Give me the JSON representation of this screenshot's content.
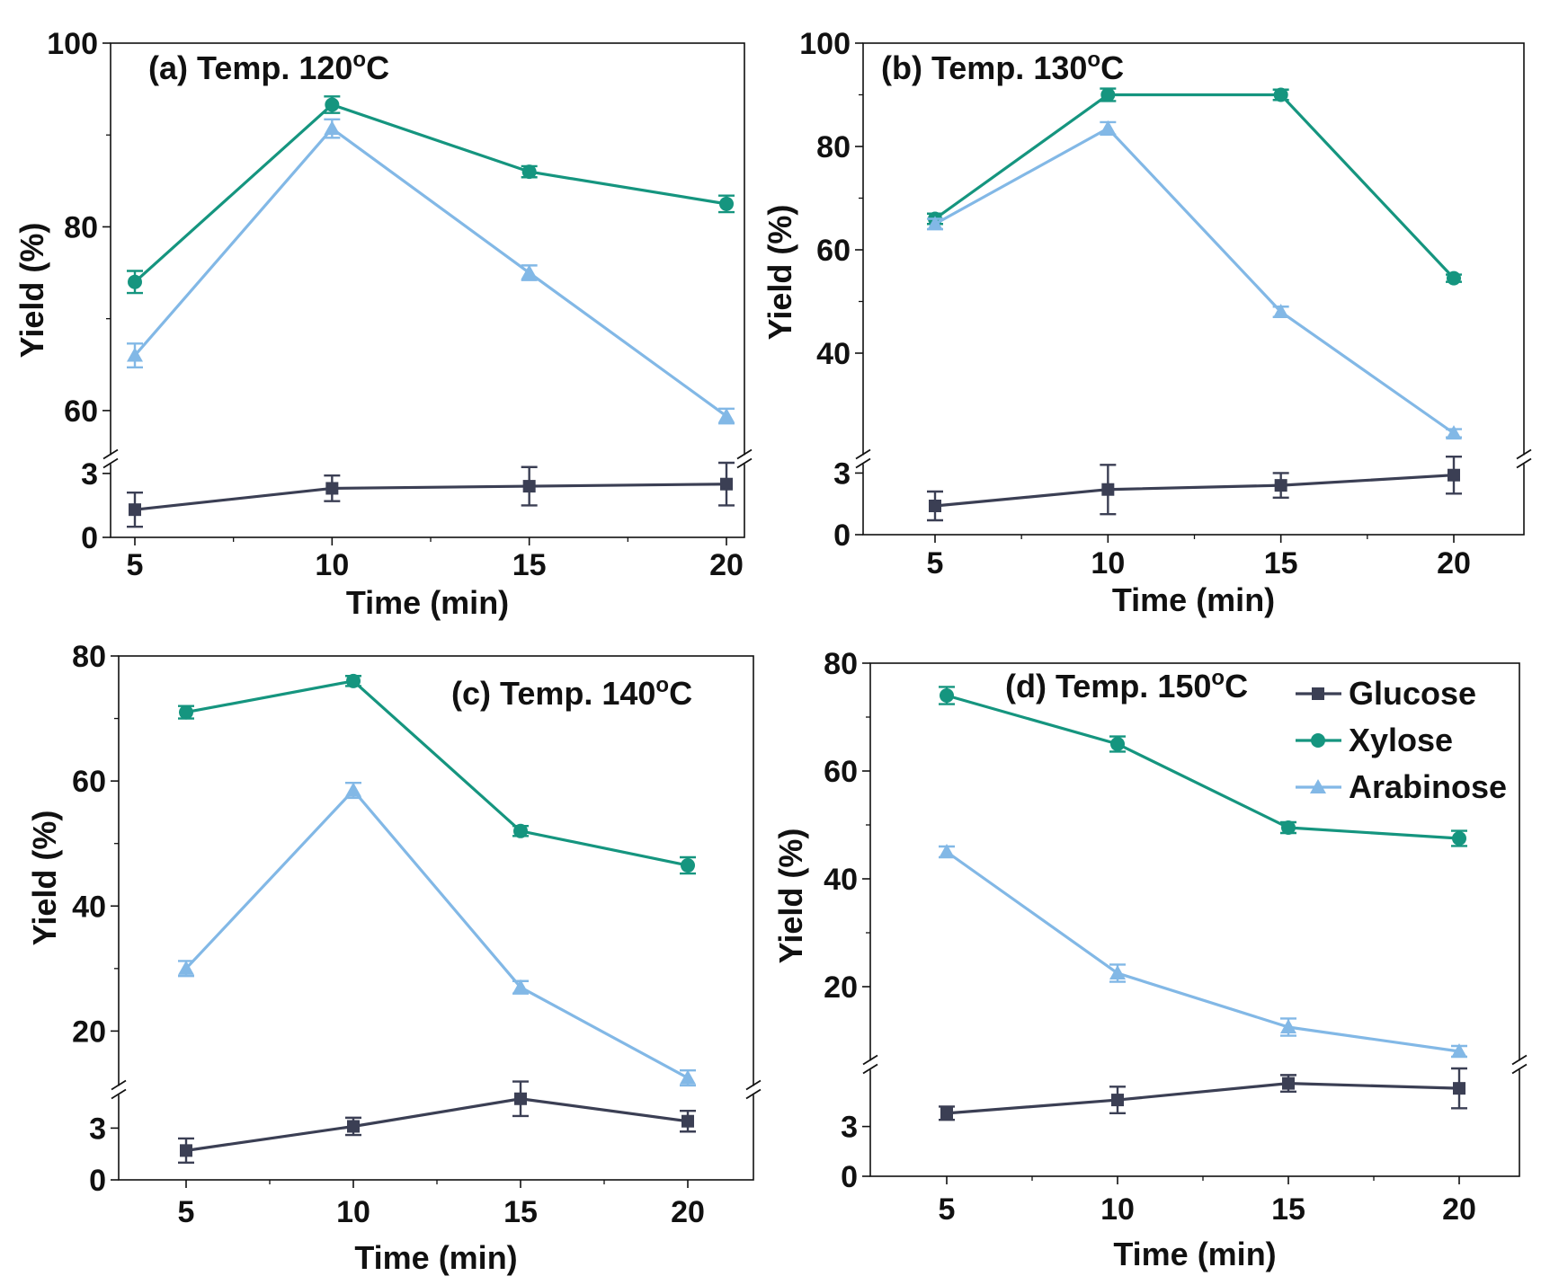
{
  "colors": {
    "glucose": "#3b3f54",
    "xylose": "#15957f",
    "arabinose": "#82b8e6",
    "axis": "#111111"
  },
  "legend": {
    "items": [
      {
        "key": "glucose",
        "label": "Glucose",
        "marker": "square"
      },
      {
        "key": "xylose",
        "label": "Xylose",
        "marker": "circle"
      },
      {
        "key": "arabinose",
        "label": "Arabinose",
        "marker": "triangle"
      }
    ]
  },
  "chart_data": [
    {
      "type": "line",
      "panel": "a",
      "title_prefix": "(a) Temp. 120",
      "title_sup": "o",
      "title_suffix": "C",
      "xlabel": "Time (min)",
      "ylabel": "Yield (%)",
      "x": [
        5,
        10,
        15,
        20
      ],
      "x_ticks": [
        "5",
        "10",
        "15",
        "20"
      ],
      "ylim_upper": [
        55,
        100
      ],
      "ylim_lower": [
        0,
        3.5
      ],
      "y_ticks_upper": [
        "60",
        "80",
        "100"
      ],
      "y_ticks_lower": [
        "0",
        "3"
      ],
      "series": [
        {
          "name": "Glucose",
          "segment": "lower",
          "values": [
            1.3,
            2.3,
            2.4,
            2.5
          ],
          "errors": [
            0.8,
            0.6,
            0.9,
            1.0
          ]
        },
        {
          "name": "Xylose",
          "segment": "upper",
          "values": [
            74.0,
            93.3,
            86.0,
            82.5
          ],
          "errors": [
            1.2,
            0.9,
            0.6,
            0.9
          ]
        },
        {
          "name": "Arabinose",
          "segment": "upper",
          "values": [
            66.0,
            90.7,
            75.0,
            59.4
          ],
          "errors": [
            1.3,
            1.0,
            0.8,
            0.8
          ]
        }
      ]
    },
    {
      "type": "line",
      "panel": "b",
      "title_prefix": "(b) Temp. 130",
      "title_sup": "o",
      "title_suffix": "C",
      "xlabel": "Time (min)",
      "ylabel": "Yield (%)",
      "x": [
        5,
        10,
        15,
        20
      ],
      "x_ticks": [
        "5",
        "10",
        "15",
        "20"
      ],
      "ylim_upper": [
        20,
        100
      ],
      "ylim_lower": [
        0,
        3.5
      ],
      "y_ticks_upper": [
        "40",
        "60",
        "80",
        "100"
      ],
      "y_ticks_lower": [
        "0",
        "3"
      ],
      "series": [
        {
          "name": "Glucose",
          "segment": "lower",
          "values": [
            1.4,
            2.2,
            2.4,
            2.9
          ],
          "errors": [
            0.7,
            1.2,
            0.6,
            0.9
          ]
        },
        {
          "name": "Xylose",
          "segment": "upper",
          "values": [
            66.0,
            90.0,
            90.0,
            54.5
          ],
          "errors": [
            1.0,
            1.2,
            1.0,
            0.7
          ]
        },
        {
          "name": "Arabinose",
          "segment": "upper",
          "values": [
            65.0,
            83.5,
            48.0,
            24.5
          ],
          "errors": [
            1.0,
            1.2,
            1.0,
            0.8
          ]
        }
      ]
    },
    {
      "type": "line",
      "panel": "c",
      "title_prefix": "(c) Temp. 140",
      "title_sup": "o",
      "title_suffix": "C",
      "xlabel": "Time (min)",
      "ylabel": "Yield (%)",
      "x": [
        5,
        10,
        15,
        20
      ],
      "x_ticks": [
        "5",
        "10",
        "15",
        "20"
      ],
      "ylim_upper": [
        11,
        80
      ],
      "ylim_lower": [
        0,
        5
      ],
      "y_ticks_upper": [
        "20",
        "40",
        "60",
        "80"
      ],
      "y_ticks_lower": [
        "0",
        "3"
      ],
      "series": [
        {
          "name": "Glucose",
          "segment": "lower",
          "values": [
            1.7,
            3.1,
            4.7,
            3.4
          ],
          "errors": [
            0.7,
            0.5,
            1.0,
            0.6
          ]
        },
        {
          "name": "Xylose",
          "segment": "upper",
          "values": [
            71.0,
            76.0,
            52.0,
            46.5
          ],
          "errors": [
            1.0,
            0.8,
            0.8,
            1.3
          ]
        },
        {
          "name": "Arabinose",
          "segment": "upper",
          "values": [
            30.0,
            58.5,
            27.0,
            12.5
          ],
          "errors": [
            1.2,
            1.2,
            1.0,
            1.2
          ]
        }
      ]
    },
    {
      "type": "line",
      "panel": "d",
      "title_prefix": "(d) Temp. 150",
      "title_sup": "o",
      "title_suffix": "C",
      "xlabel": "Time (min)",
      "ylabel": "Yield (%)",
      "x": [
        5,
        10,
        15,
        20
      ],
      "x_ticks": [
        "5",
        "10",
        "15",
        "20"
      ],
      "ylim_upper": [
        6,
        80
      ],
      "ylim_lower": [
        0,
        6.5
      ],
      "y_ticks_upper": [
        "20",
        "40",
        "60",
        "80"
      ],
      "y_ticks_lower": [
        "0",
        "3"
      ],
      "series": [
        {
          "name": "Glucose",
          "segment": "lower",
          "values": [
            3.8,
            4.6,
            5.6,
            5.3
          ],
          "errors": [
            0.4,
            0.8,
            0.5,
            1.2
          ]
        },
        {
          "name": "Xylose",
          "segment": "upper",
          "values": [
            74.0,
            65.0,
            49.5,
            47.5
          ],
          "errors": [
            1.6,
            1.4,
            1.0,
            1.4
          ]
        },
        {
          "name": "Arabinose",
          "segment": "upper",
          "values": [
            45.0,
            22.5,
            12.5,
            8.0
          ],
          "errors": [
            1.0,
            1.6,
            1.6,
            1.0
          ]
        }
      ]
    }
  ]
}
